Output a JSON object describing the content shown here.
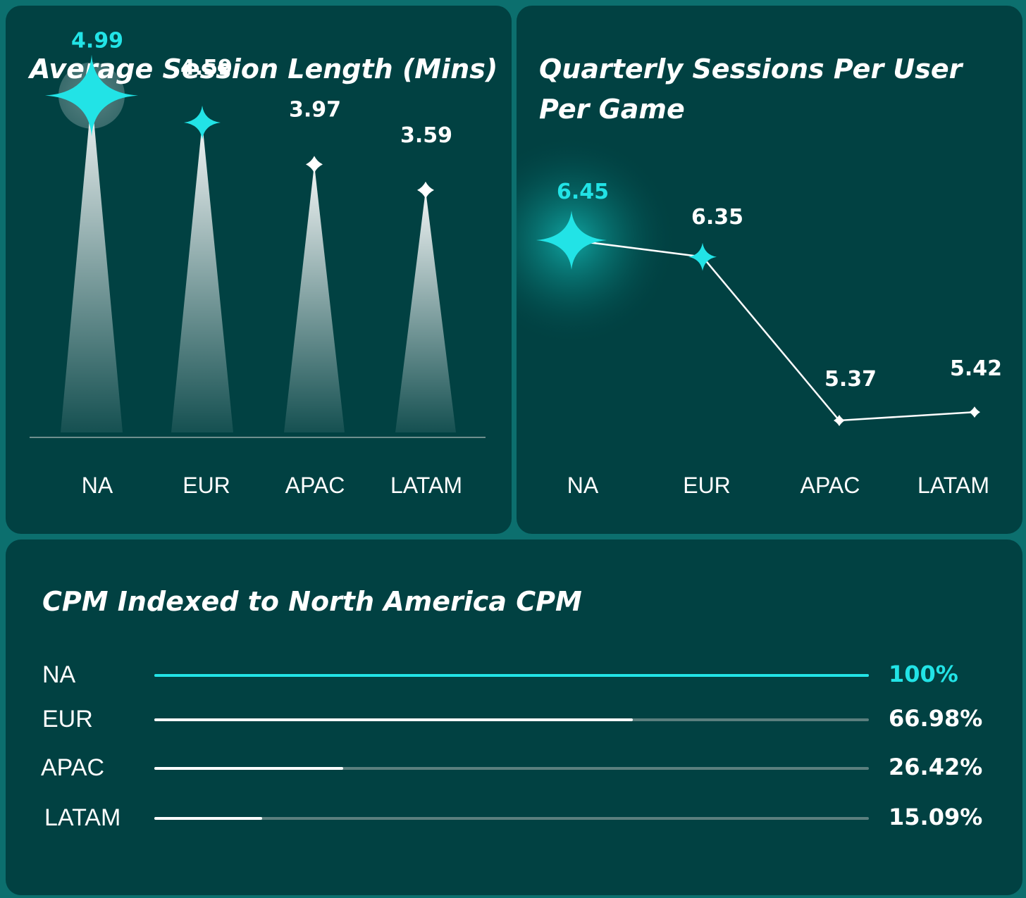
{
  "colors": {
    "accent": "#22e3e6",
    "panel": "#014142",
    "background": "#0c6f6e",
    "text": "#ffffff",
    "track": "#5b7f7e"
  },
  "chart_data": [
    {
      "type": "bar",
      "title": "Average Session Length (Mins)",
      "categories": [
        "NA",
        "EUR",
        "APAC",
        "LATAM"
      ],
      "values": [
        4.99,
        4.59,
        3.97,
        3.59
      ],
      "value_labels": [
        "4.99",
        "4.59",
        "3.97",
        "3.59"
      ],
      "highlight": "NA",
      "bar_style": "tapered spikes with star markers"
    },
    {
      "type": "line",
      "title": "Quarterly Sessions Per User Per Game",
      "categories": [
        "NA",
        "EUR",
        "APAC",
        "LATAM"
      ],
      "values": [
        6.45,
        6.35,
        5.37,
        5.42
      ],
      "value_labels": [
        "6.45",
        "6.35",
        "5.37",
        "5.42"
      ],
      "highlight": "NA"
    },
    {
      "type": "bar",
      "orientation": "horizontal",
      "title": "CPM Indexed to North America CPM",
      "categories": [
        "NA",
        "EUR",
        "APAC",
        "LATAM"
      ],
      "values": [
        100,
        66.98,
        26.42,
        15.09
      ],
      "value_labels": [
        "100%",
        "66.98%",
        "26.42%",
        "15.09%"
      ],
      "unit": "%",
      "xlim": [
        0,
        100
      ],
      "highlight": "NA"
    }
  ]
}
